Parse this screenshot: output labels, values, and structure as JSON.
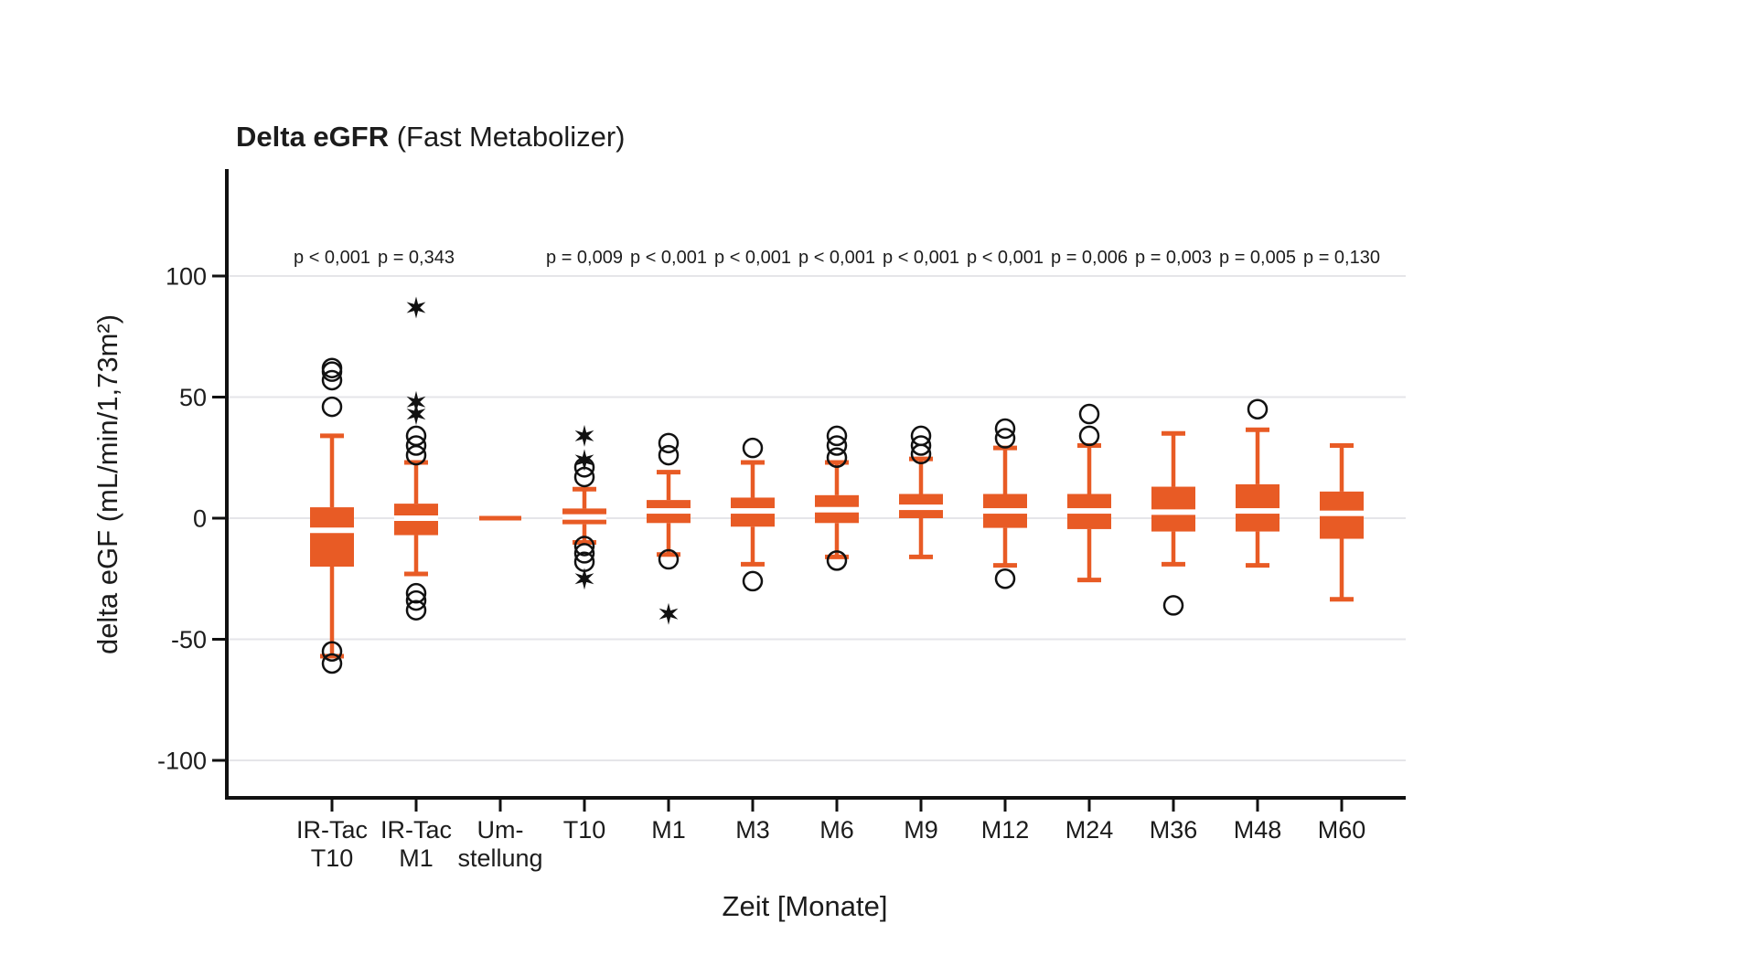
{
  "title": {
    "main": "Delta eGFR",
    "sub": " (Fast Metabolizer)"
  },
  "axes": {
    "y_label": "delta eGF (mL/min/1,73m²)",
    "x_label": "Zeit [Monate]"
  },
  "colors": {
    "box": "#E85B25",
    "grid": "#E5E5E9",
    "axis": "#111111",
    "text": "#1C1C1C",
    "median": "#FFFFFF",
    "outlier_stroke": "#111111"
  },
  "chart_data": {
    "type": "boxplot",
    "title": "Delta eGFR (Fast Metabolizer)",
    "xlabel": "Zeit [Monate]",
    "ylabel": "delta eGF (mL/min/1,73m²)",
    "ylim": [
      -115,
      140
    ],
    "y_ticks": [
      100,
      50,
      0,
      -50,
      -100
    ],
    "grid": "horizontal",
    "categories": [
      "IR-Tac T10",
      "IR-Tac M1",
      "Um-stellung",
      "T10",
      "M1",
      "M3",
      "M6",
      "M9",
      "M12",
      "M24",
      "M36",
      "M48",
      "M60"
    ],
    "boxes": [
      {
        "label_lines": [
          "IR-Tac",
          "T10"
        ],
        "p": "p < 0,001",
        "whisker_low": -57,
        "q1": -20,
        "median": -5,
        "q3": 4.5,
        "whisker_high": 34,
        "outliers": [
          62,
          60.5,
          57,
          46,
          -55,
          -60
        ],
        "extremes": [],
        "flat": false
      },
      {
        "label_lines": [
          "IR-Tac",
          "M1"
        ],
        "p": "p = 0,343",
        "whisker_low": -23,
        "q1": -7,
        "median": 0,
        "q3": 6,
        "whisker_high": 23,
        "outliers": [
          34,
          30,
          26,
          -31,
          -34,
          -38
        ],
        "extremes": [
          87,
          48,
          43
        ],
        "flat": false
      },
      {
        "label_lines": [
          "Um-",
          "stellung"
        ],
        "p": "",
        "whisker_low": 0,
        "q1": 0,
        "median": 0,
        "q3": 0,
        "whisker_high": 0,
        "outliers": [],
        "extremes": [],
        "flat": true
      },
      {
        "label_lines": [
          "T10"
        ],
        "p": "p = 0,009",
        "whisker_low": -10,
        "q1": -2.5,
        "median": 0.5,
        "q3": 4,
        "whisker_high": 12,
        "outliers": [
          21,
          17,
          -11.5,
          -14.5,
          -18
        ],
        "extremes": [
          34,
          24,
          -25
        ],
        "flat": false
      },
      {
        "label_lines": [
          "M1"
        ],
        "p": "p < 0,001",
        "whisker_low": -15,
        "q1": -2,
        "median": 3,
        "q3": 7.5,
        "whisker_high": 19,
        "outliers": [
          31,
          26,
          -17
        ],
        "extremes": [
          -39.5
        ],
        "flat": false
      },
      {
        "label_lines": [
          "M3"
        ],
        "p": "p < 0,001",
        "whisker_low": -19,
        "q1": -3.5,
        "median": 3,
        "q3": 8.5,
        "whisker_high": 23,
        "outliers": [
          29,
          -26
        ],
        "extremes": [],
        "flat": false
      },
      {
        "label_lines": [
          "M6"
        ],
        "p": "p < 0,001",
        "whisker_low": -16,
        "q1": -2,
        "median": 3.5,
        "q3": 9.5,
        "whisker_high": 23,
        "outliers": [
          34,
          30,
          25,
          -17.5
        ],
        "extremes": [],
        "flat": false
      },
      {
        "label_lines": [
          "M9"
        ],
        "p": "p < 0,001",
        "whisker_low": -16,
        "q1": 0,
        "median": 4.5,
        "q3": 10,
        "whisker_high": 24.5,
        "outliers": [
          34,
          30,
          26.5
        ],
        "extremes": [],
        "flat": false
      },
      {
        "label_lines": [
          "M12"
        ],
        "p": "p < 0,001",
        "whisker_low": -19.5,
        "q1": -4,
        "median": 3,
        "q3": 10,
        "whisker_high": 29,
        "outliers": [
          37,
          33,
          -25
        ],
        "extremes": [],
        "flat": false
      },
      {
        "label_lines": [
          "M24"
        ],
        "p": "p = 0,006",
        "whisker_low": -25.5,
        "q1": -4.5,
        "median": 3,
        "q3": 10,
        "whisker_high": 30,
        "outliers": [
          43,
          34
        ],
        "extremes": [],
        "flat": false
      },
      {
        "label_lines": [
          "M36"
        ],
        "p": "p = 0,003",
        "whisker_low": -19,
        "q1": -5.5,
        "median": 2.5,
        "q3": 13,
        "whisker_high": 35,
        "outliers": [
          -36
        ],
        "extremes": [],
        "flat": false
      },
      {
        "label_lines": [
          "M48"
        ],
        "p": "p = 0,005",
        "whisker_low": -19.5,
        "q1": -5.5,
        "median": 3,
        "q3": 14,
        "whisker_high": 36.5,
        "outliers": [
          45
        ],
        "extremes": [],
        "flat": false
      },
      {
        "label_lines": [
          "M60"
        ],
        "p": "p = 0,130",
        "whisker_low": -33.5,
        "q1": -8.5,
        "median": 2,
        "q3": 11,
        "whisker_high": 30,
        "outliers": [],
        "extremes": [],
        "flat": false
      }
    ]
  }
}
